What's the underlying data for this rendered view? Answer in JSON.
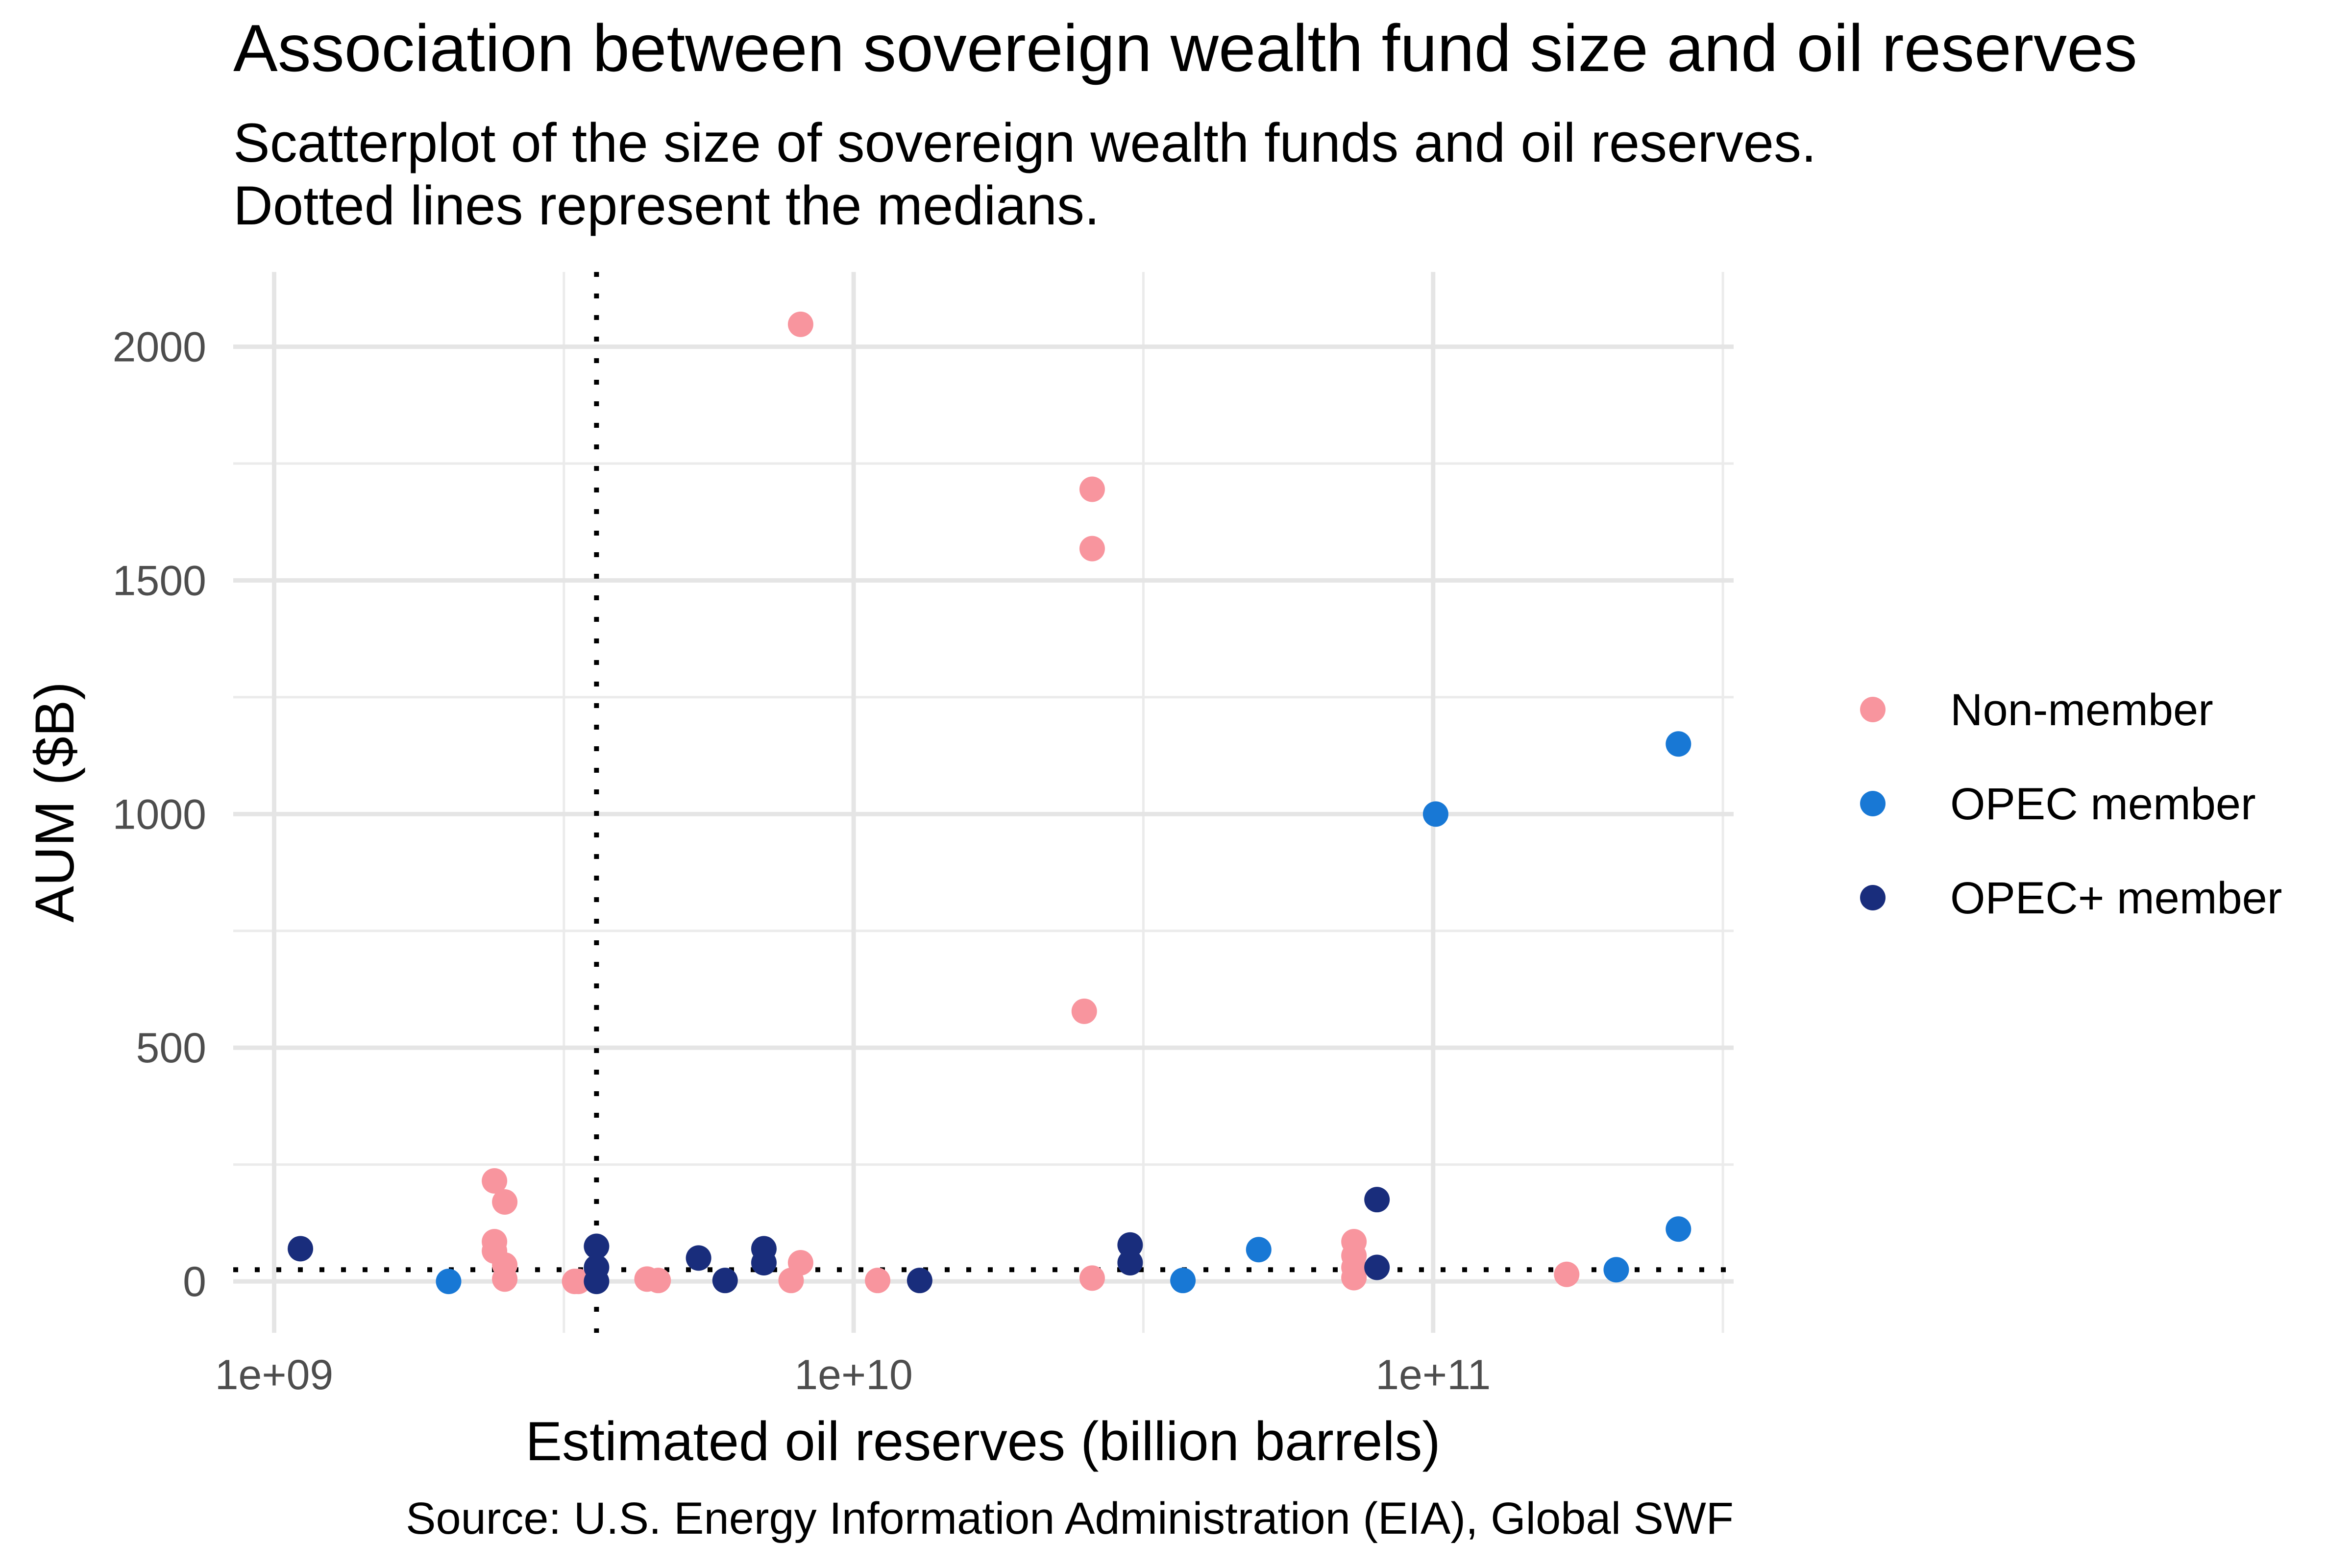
{
  "chart_data": {
    "type": "scatter",
    "title": "Association between sovereign wealth fund size and oil reserves",
    "subtitle": [
      "Scatterplot of the size of sovereign wealth funds and oil reserves.",
      "Dotted lines represent the medians."
    ],
    "xlabel": "Estimated oil reserves (billion barrels)",
    "ylabel": "AUM ($B)",
    "caption": "Source: U.S. Energy Information Administration (EIA), Global SWF",
    "x_scale": "log10",
    "xlim": [
      850000000.0,
      330000000000.0
    ],
    "ylim": [
      -110,
      2160
    ],
    "x_ticks": [
      {
        "value": 1000000000.0,
        "label": "1e+09"
      },
      {
        "value": 10000000000.0,
        "label": "1e+10"
      },
      {
        "value": 100000000000.0,
        "label": "1e+11"
      }
    ],
    "y_ticks": [
      {
        "value": 0,
        "label": "0"
      },
      {
        "value": 500,
        "label": "500"
      },
      {
        "value": 1000,
        "label": "1000"
      },
      {
        "value": 1500,
        "label": "1500"
      },
      {
        "value": 2000,
        "label": "2000"
      }
    ],
    "grid": true,
    "medians": {
      "x": 3600000000.0,
      "y": 25
    },
    "legend": {
      "placement": "right"
    },
    "series": [
      {
        "name": "Non-member",
        "color": "#F8959E",
        "points": [
          [
            2400000000.0,
            215
          ],
          [
            2500000000.0,
            170
          ],
          [
            2400000000.0,
            85
          ],
          [
            2400000000.0,
            65
          ],
          [
            2500000000.0,
            35
          ],
          [
            2500000000.0,
            5
          ],
          [
            3300000000.0,
            0
          ],
          [
            3350000000.0,
            0
          ],
          [
            4400000000.0,
            5
          ],
          [
            4600000000.0,
            2
          ],
          [
            7800000000.0,
            2
          ],
          [
            8100000000.0,
            40
          ],
          [
            8100000000.0,
            2048
          ],
          [
            11000000000.0,
            2
          ],
          [
            25000000000.0,
            578
          ],
          [
            25800000000.0,
            1695
          ],
          [
            25800000000.0,
            1568
          ],
          [
            25800000000.0,
            7
          ],
          [
            73000000000.0,
            85
          ],
          [
            73000000000.0,
            55
          ],
          [
            73000000000.0,
            30
          ],
          [
            73000000000.0,
            8
          ],
          [
            170000000000.0,
            15
          ]
        ]
      },
      {
        "name": "OPEC member",
        "color": "#1878D5",
        "points": [
          [
            2000000000.0,
            0
          ],
          [
            37000000000.0,
            2
          ],
          [
            50000000000.0,
            68
          ],
          [
            101000000000.0,
            1000
          ],
          [
            207000000000.0,
            25
          ],
          [
            265000000000.0,
            1150
          ],
          [
            265000000000.0,
            112
          ]
        ]
      },
      {
        "name": "OPEC+ member",
        "color": "#192D7C",
        "points": [
          [
            1110000000.0,
            70
          ],
          [
            3600000000.0,
            75
          ],
          [
            3600000000.0,
            30
          ],
          [
            3600000000.0,
            0
          ],
          [
            5400000000.0,
            50
          ],
          [
            6000000000.0,
            2
          ],
          [
            7000000000.0,
            70
          ],
          [
            7000000000.0,
            40
          ],
          [
            13000000000.0,
            2
          ],
          [
            30000000000.0,
            78
          ],
          [
            30000000000.0,
            40
          ],
          [
            80000000000.0,
            175
          ],
          [
            80000000000.0,
            30
          ]
        ]
      }
    ]
  }
}
